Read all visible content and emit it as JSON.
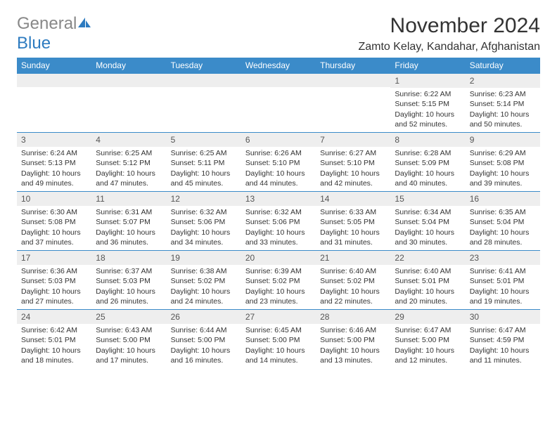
{
  "logo": {
    "gray": "General",
    "blue": "Blue"
  },
  "title": "November 2024",
  "location": "Zamto Kelay, Kandahar, Afghanistan",
  "colors": {
    "header_bg": "#3b8bc9",
    "header_text": "#ffffff",
    "daynum_bg": "#eeeeee",
    "body_text": "#333333",
    "logo_gray": "#888888",
    "logo_blue": "#2d7bc0",
    "row_border": "#3b8bc9"
  },
  "daynames": [
    "Sunday",
    "Monday",
    "Tuesday",
    "Wednesday",
    "Thursday",
    "Friday",
    "Saturday"
  ],
  "weeks": [
    [
      {
        "n": "",
        "sr": "",
        "ss": "",
        "dl": ""
      },
      {
        "n": "",
        "sr": "",
        "ss": "",
        "dl": ""
      },
      {
        "n": "",
        "sr": "",
        "ss": "",
        "dl": ""
      },
      {
        "n": "",
        "sr": "",
        "ss": "",
        "dl": ""
      },
      {
        "n": "",
        "sr": "",
        "ss": "",
        "dl": ""
      },
      {
        "n": "1",
        "sr": "Sunrise: 6:22 AM",
        "ss": "Sunset: 5:15 PM",
        "dl": "Daylight: 10 hours and 52 minutes."
      },
      {
        "n": "2",
        "sr": "Sunrise: 6:23 AM",
        "ss": "Sunset: 5:14 PM",
        "dl": "Daylight: 10 hours and 50 minutes."
      }
    ],
    [
      {
        "n": "3",
        "sr": "Sunrise: 6:24 AM",
        "ss": "Sunset: 5:13 PM",
        "dl": "Daylight: 10 hours and 49 minutes."
      },
      {
        "n": "4",
        "sr": "Sunrise: 6:25 AM",
        "ss": "Sunset: 5:12 PM",
        "dl": "Daylight: 10 hours and 47 minutes."
      },
      {
        "n": "5",
        "sr": "Sunrise: 6:25 AM",
        "ss": "Sunset: 5:11 PM",
        "dl": "Daylight: 10 hours and 45 minutes."
      },
      {
        "n": "6",
        "sr": "Sunrise: 6:26 AM",
        "ss": "Sunset: 5:10 PM",
        "dl": "Daylight: 10 hours and 44 minutes."
      },
      {
        "n": "7",
        "sr": "Sunrise: 6:27 AM",
        "ss": "Sunset: 5:10 PM",
        "dl": "Daylight: 10 hours and 42 minutes."
      },
      {
        "n": "8",
        "sr": "Sunrise: 6:28 AM",
        "ss": "Sunset: 5:09 PM",
        "dl": "Daylight: 10 hours and 40 minutes."
      },
      {
        "n": "9",
        "sr": "Sunrise: 6:29 AM",
        "ss": "Sunset: 5:08 PM",
        "dl": "Daylight: 10 hours and 39 minutes."
      }
    ],
    [
      {
        "n": "10",
        "sr": "Sunrise: 6:30 AM",
        "ss": "Sunset: 5:08 PM",
        "dl": "Daylight: 10 hours and 37 minutes."
      },
      {
        "n": "11",
        "sr": "Sunrise: 6:31 AM",
        "ss": "Sunset: 5:07 PM",
        "dl": "Daylight: 10 hours and 36 minutes."
      },
      {
        "n": "12",
        "sr": "Sunrise: 6:32 AM",
        "ss": "Sunset: 5:06 PM",
        "dl": "Daylight: 10 hours and 34 minutes."
      },
      {
        "n": "13",
        "sr": "Sunrise: 6:32 AM",
        "ss": "Sunset: 5:06 PM",
        "dl": "Daylight: 10 hours and 33 minutes."
      },
      {
        "n": "14",
        "sr": "Sunrise: 6:33 AM",
        "ss": "Sunset: 5:05 PM",
        "dl": "Daylight: 10 hours and 31 minutes."
      },
      {
        "n": "15",
        "sr": "Sunrise: 6:34 AM",
        "ss": "Sunset: 5:04 PM",
        "dl": "Daylight: 10 hours and 30 minutes."
      },
      {
        "n": "16",
        "sr": "Sunrise: 6:35 AM",
        "ss": "Sunset: 5:04 PM",
        "dl": "Daylight: 10 hours and 28 minutes."
      }
    ],
    [
      {
        "n": "17",
        "sr": "Sunrise: 6:36 AM",
        "ss": "Sunset: 5:03 PM",
        "dl": "Daylight: 10 hours and 27 minutes."
      },
      {
        "n": "18",
        "sr": "Sunrise: 6:37 AM",
        "ss": "Sunset: 5:03 PM",
        "dl": "Daylight: 10 hours and 26 minutes."
      },
      {
        "n": "19",
        "sr": "Sunrise: 6:38 AM",
        "ss": "Sunset: 5:02 PM",
        "dl": "Daylight: 10 hours and 24 minutes."
      },
      {
        "n": "20",
        "sr": "Sunrise: 6:39 AM",
        "ss": "Sunset: 5:02 PM",
        "dl": "Daylight: 10 hours and 23 minutes."
      },
      {
        "n": "21",
        "sr": "Sunrise: 6:40 AM",
        "ss": "Sunset: 5:02 PM",
        "dl": "Daylight: 10 hours and 22 minutes."
      },
      {
        "n": "22",
        "sr": "Sunrise: 6:40 AM",
        "ss": "Sunset: 5:01 PM",
        "dl": "Daylight: 10 hours and 20 minutes."
      },
      {
        "n": "23",
        "sr": "Sunrise: 6:41 AM",
        "ss": "Sunset: 5:01 PM",
        "dl": "Daylight: 10 hours and 19 minutes."
      }
    ],
    [
      {
        "n": "24",
        "sr": "Sunrise: 6:42 AM",
        "ss": "Sunset: 5:01 PM",
        "dl": "Daylight: 10 hours and 18 minutes."
      },
      {
        "n": "25",
        "sr": "Sunrise: 6:43 AM",
        "ss": "Sunset: 5:00 PM",
        "dl": "Daylight: 10 hours and 17 minutes."
      },
      {
        "n": "26",
        "sr": "Sunrise: 6:44 AM",
        "ss": "Sunset: 5:00 PM",
        "dl": "Daylight: 10 hours and 16 minutes."
      },
      {
        "n": "27",
        "sr": "Sunrise: 6:45 AM",
        "ss": "Sunset: 5:00 PM",
        "dl": "Daylight: 10 hours and 14 minutes."
      },
      {
        "n": "28",
        "sr": "Sunrise: 6:46 AM",
        "ss": "Sunset: 5:00 PM",
        "dl": "Daylight: 10 hours and 13 minutes."
      },
      {
        "n": "29",
        "sr": "Sunrise: 6:47 AM",
        "ss": "Sunset: 5:00 PM",
        "dl": "Daylight: 10 hours and 12 minutes."
      },
      {
        "n": "30",
        "sr": "Sunrise: 6:47 AM",
        "ss": "Sunset: 4:59 PM",
        "dl": "Daylight: 10 hours and 11 minutes."
      }
    ]
  ]
}
